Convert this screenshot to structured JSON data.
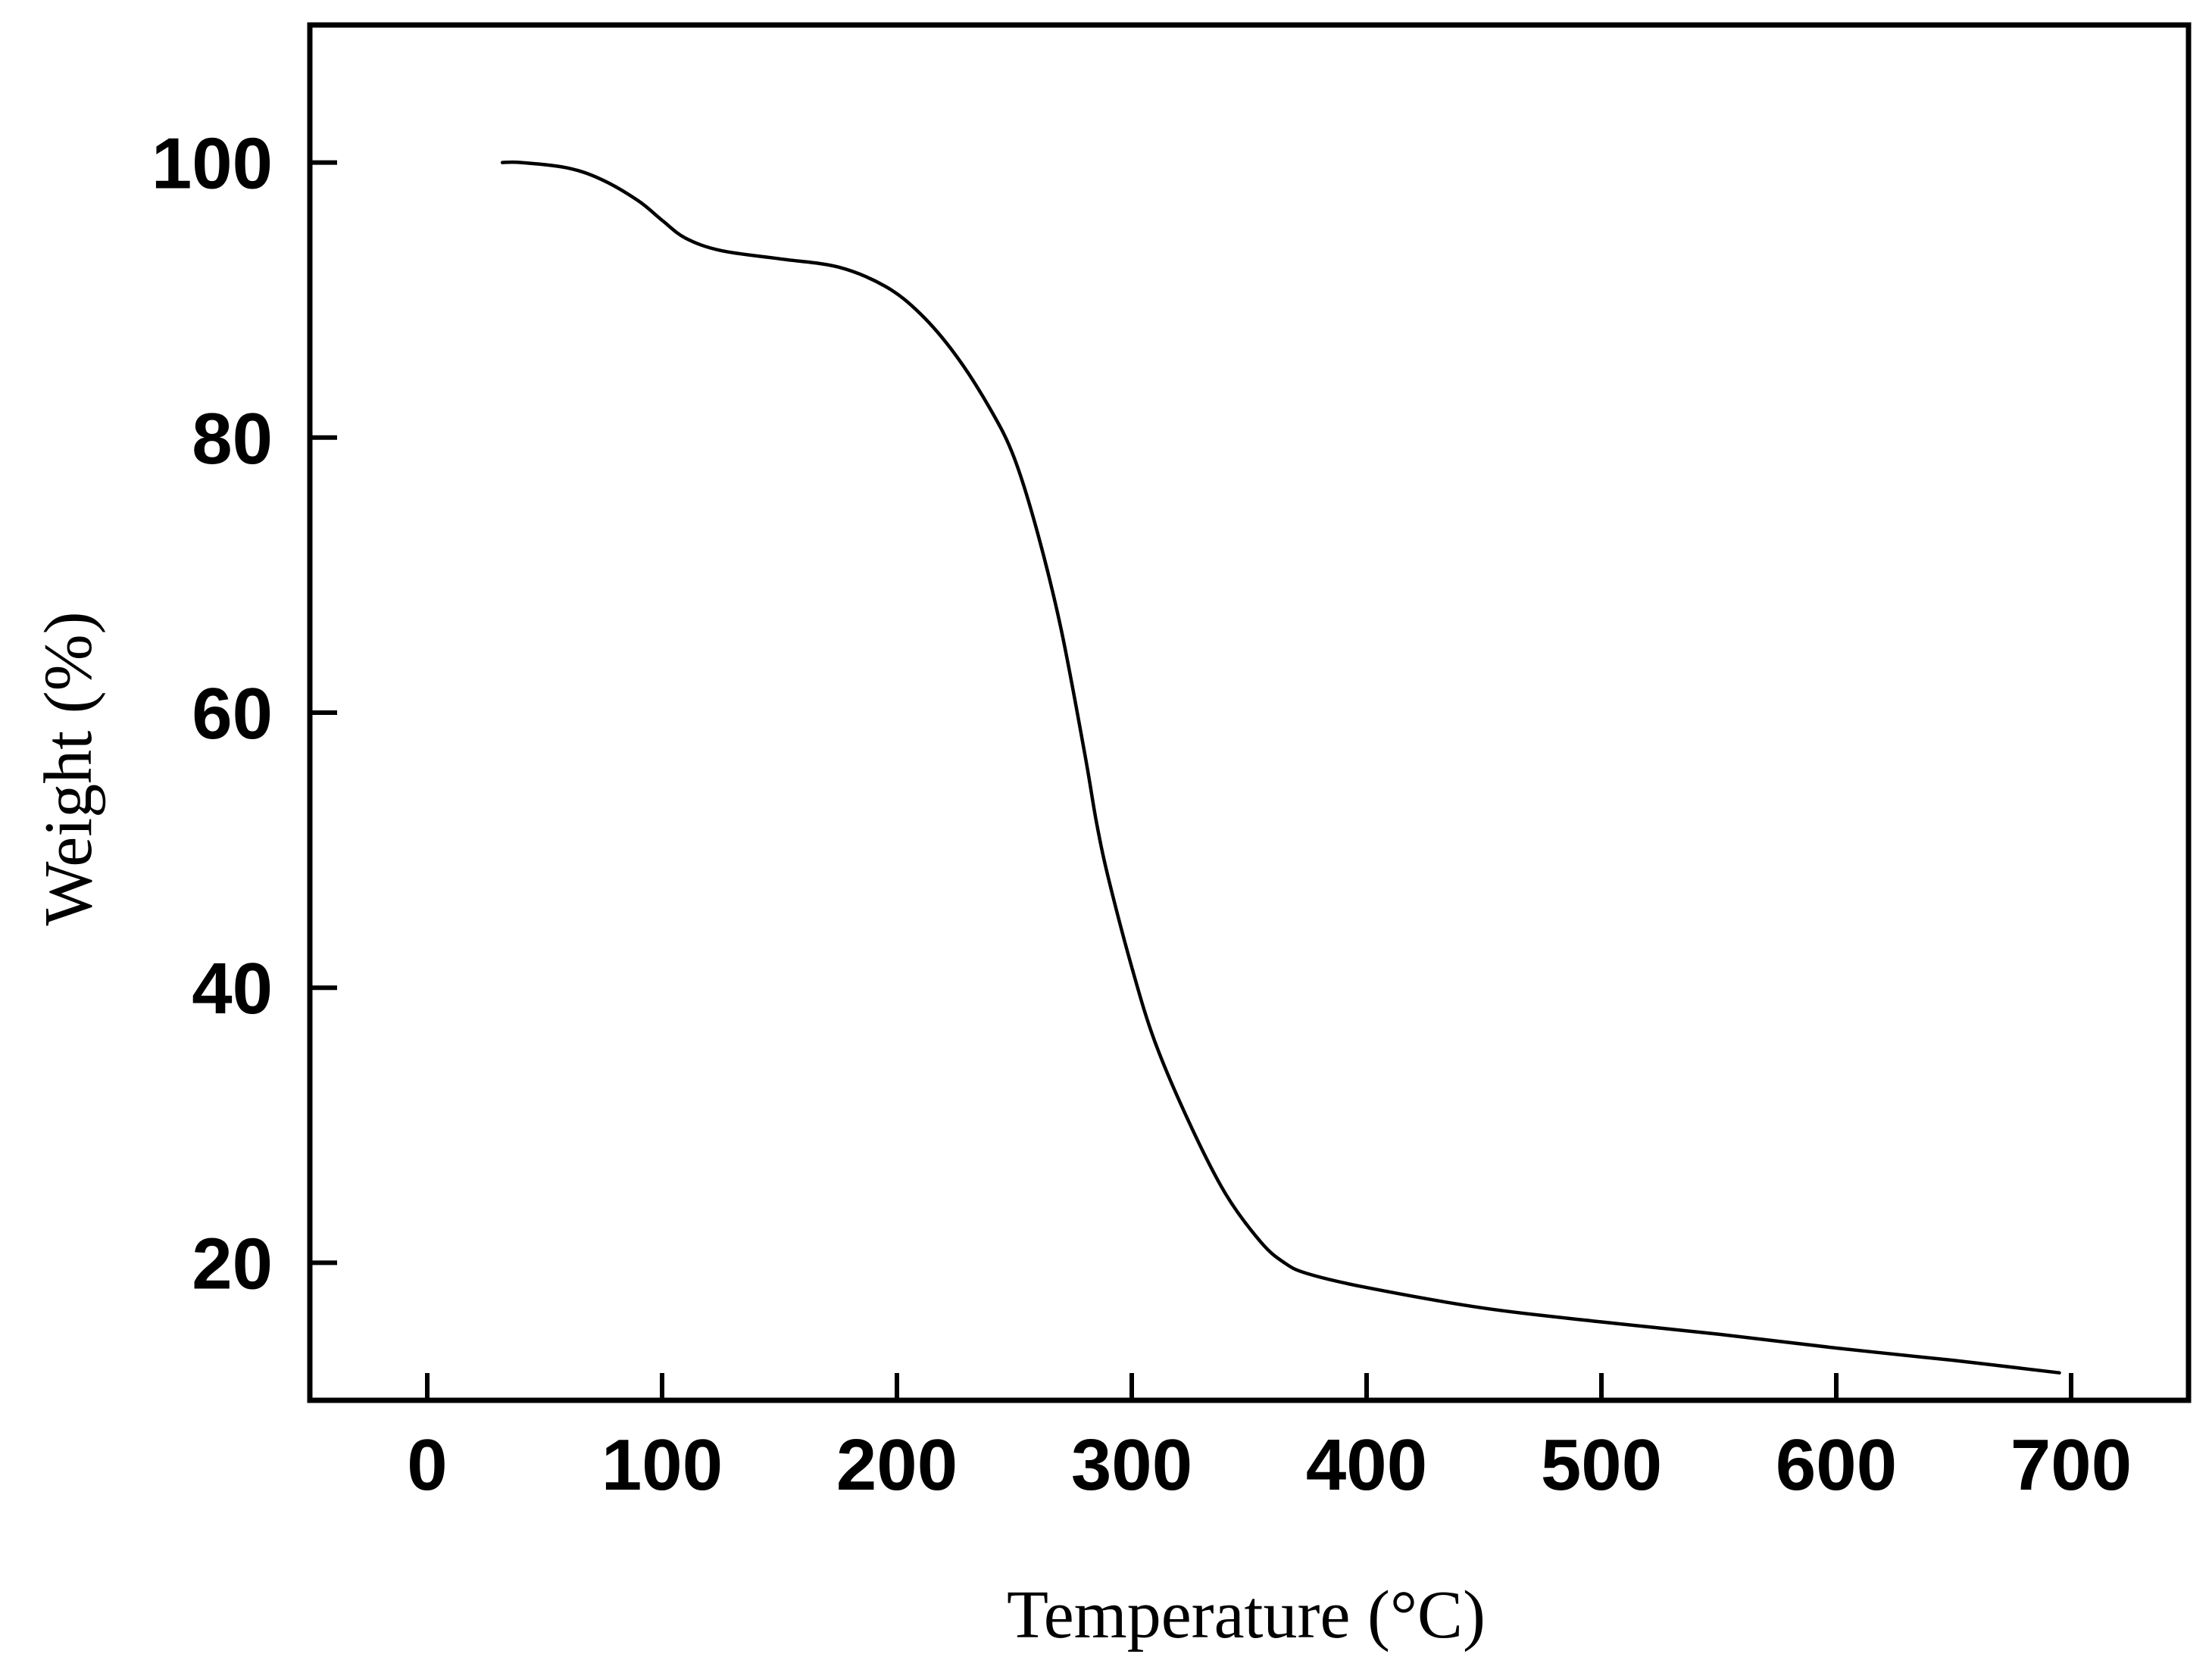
{
  "chart_data": {
    "type": "line",
    "title": "",
    "xlabel": "Temperature (°C)",
    "ylabel": "Weight (%)",
    "xlim": [
      -50,
      750
    ],
    "ylim": [
      10,
      110
    ],
    "xticks": [
      0,
      100,
      200,
      300,
      400,
      500,
      600,
      700
    ],
    "yticks": [
      20,
      40,
      60,
      80,
      100
    ],
    "xtick_labels": [
      "0",
      "100",
      "200",
      "300",
      "400",
      "500",
      "600",
      "700"
    ],
    "ytick_labels": [
      "20",
      "40",
      "60",
      "80",
      "100"
    ],
    "grid": false,
    "legend": "none",
    "series": [
      {
        "color": "#000000",
        "x": [
          32,
          40,
          60,
          75,
          90,
          100,
          110,
          125,
          150,
          175,
          195,
          210,
          225,
          240,
          250,
          260,
          270,
          280,
          285,
          290,
          300,
          310,
          325,
          340,
          355,
          365,
          375,
          400,
          450,
          500,
          550,
          600,
          650,
          695
        ],
        "y": [
          100,
          100,
          99.6,
          98.7,
          97.2,
          95.8,
          94.5,
          93.6,
          93,
          92.4,
          91,
          89,
          86,
          82,
          78.5,
          73,
          66,
          57,
          52,
          48,
          41.5,
          36,
          30,
          25,
          21.5,
          20,
          19.2,
          18.2,
          16.7,
          15.7,
          14.8,
          13.8,
          12.9,
          12
        ]
      }
    ]
  }
}
